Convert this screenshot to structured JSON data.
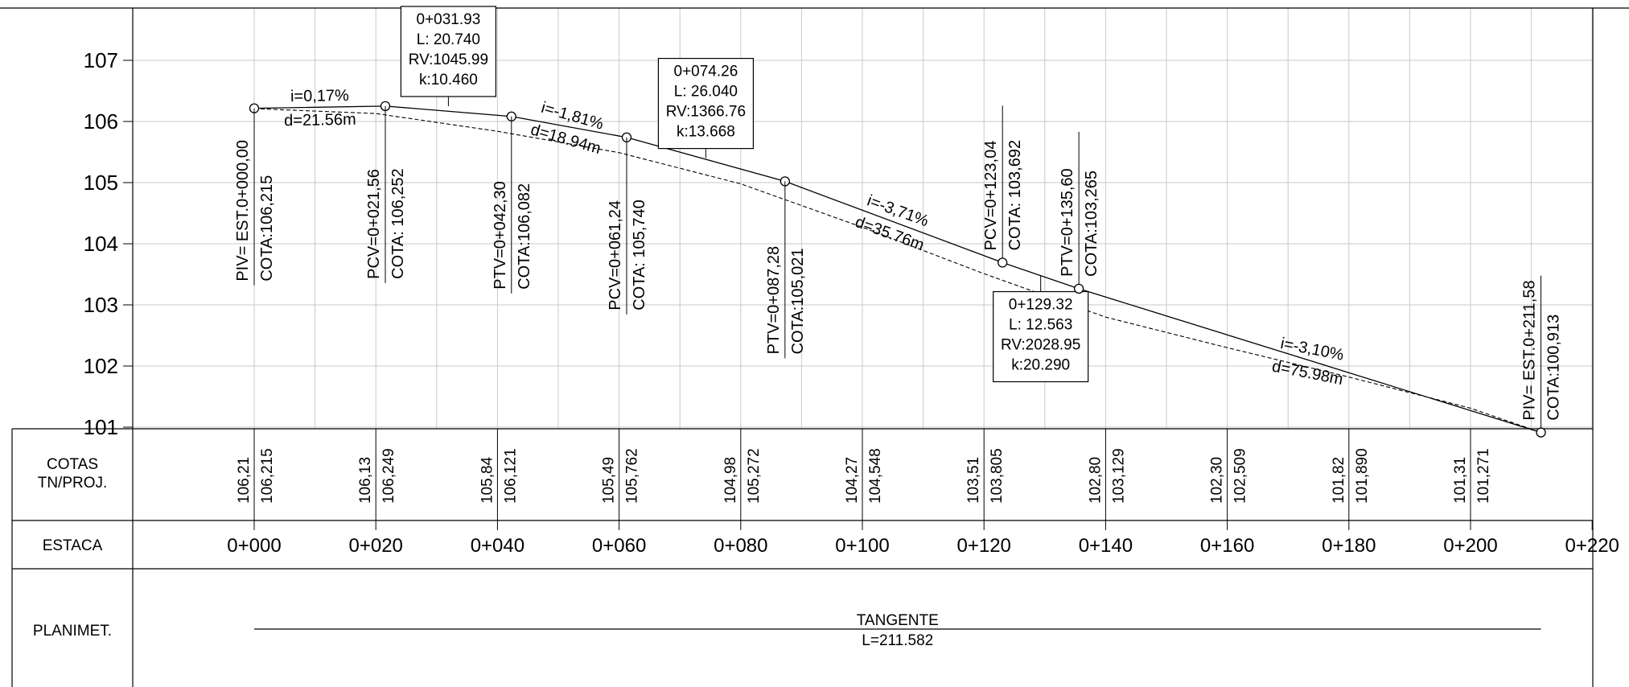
{
  "chart_data": {
    "type": "line",
    "x_unit": "m",
    "y_ticks": [
      107,
      106,
      105,
      104,
      103,
      102,
      101
    ],
    "series": [
      {
        "points": [
          [
            0,
            106.215
          ],
          [
            21.56,
            106.252
          ],
          [
            42.3,
            106.082
          ],
          [
            61.24,
            105.74
          ],
          [
            87.28,
            105.021
          ],
          [
            123.04,
            103.692
          ],
          [
            135.6,
            103.265
          ],
          [
            211.58,
            100.913
          ]
        ]
      },
      {
        "points": [
          [
            0,
            106.21
          ],
          [
            20,
            106.13
          ],
          [
            40,
            105.84
          ],
          [
            60,
            105.49
          ],
          [
            80,
            104.98
          ],
          [
            100,
            104.27
          ],
          [
            120,
            103.51
          ],
          [
            140,
            102.8
          ],
          [
            160,
            102.3
          ],
          [
            180,
            101.82
          ],
          [
            200,
            101.31
          ],
          [
            211.58,
            100.913
          ]
        ]
      }
    ],
    "vertices": [
      {
        "x": 0,
        "y": 106.215,
        "labels": [
          "PIV= EST.0+000,00",
          "COTA:106,215"
        ]
      },
      {
        "x": 21.56,
        "y": 106.252,
        "labels": [
          "PCV=0+021,56",
          "COTA: 106,252"
        ]
      },
      {
        "x": 42.3,
        "y": 106.082,
        "labels": [
          "PTV=0+042,30",
          "COTA:106,082"
        ]
      },
      {
        "x": 61.24,
        "y": 105.74,
        "labels": [
          "PCV=0+061,24",
          "COTA: 105,740"
        ]
      },
      {
        "x": 87.28,
        "y": 105.021,
        "labels": [
          "PTV=0+087,28",
          "COTA:105,021"
        ]
      },
      {
        "x": 123.04,
        "y": 103.692,
        "labels": [
          "PCV=0+123,04",
          "COTA: 103,692"
        ]
      },
      {
        "x": 135.6,
        "y": 103.265,
        "labels": [
          "PTV=0+135,60",
          "COTA:103,265"
        ]
      },
      {
        "x": 211.58,
        "y": 100.913,
        "labels": [
          "PIV= EST.0+211,58",
          "COTA:100,913"
        ]
      }
    ],
    "curves": [
      {
        "x": 31.93,
        "y": 106.25,
        "lines": [
          "0+031.93",
          "L: 20.740",
          "RV:1045.99",
          "k:10.460"
        ]
      },
      {
        "x": 74.26,
        "y": 105.4,
        "lines": [
          "0+074.26",
          "L: 26.040",
          "RV:1366.76",
          "k:13.668"
        ]
      },
      {
        "x": 129.32,
        "y": 103.48,
        "lines": [
          "0+129.32",
          "L: 12.563",
          "RV:2028.95",
          "k:20.290"
        ]
      }
    ],
    "slopes": [
      {
        "x": 10.8,
        "y": 106.23,
        "i": "i=0,17%",
        "d": "d=21.56m"
      },
      {
        "x": 51.8,
        "y": 105.91,
        "i": "i=-1,81%",
        "d": "d=18.94m"
      },
      {
        "x": 105.2,
        "y": 104.36,
        "i": "i=-3,71%",
        "d": "d=35.76m"
      },
      {
        "x": 173.6,
        "y": 102.09,
        "i": "i=-3,10%",
        "d": "d=75.98m"
      }
    ],
    "cotas": [
      {
        "x": 0,
        "tn": "106,21",
        "proj": "106,215"
      },
      {
        "x": 20,
        "tn": "106,13",
        "proj": "106,249"
      },
      {
        "x": 40,
        "tn": "105,84",
        "proj": "106,121"
      },
      {
        "x": 60,
        "tn": "105,49",
        "proj": "105,762"
      },
      {
        "x": 80,
        "tn": "104,98",
        "proj": "105,272"
      },
      {
        "x": 100,
        "tn": "104,27",
        "proj": "104,548"
      },
      {
        "x": 120,
        "tn": "103,51",
        "proj": "103,805"
      },
      {
        "x": 140,
        "tn": "102,80",
        "proj": "103,129"
      },
      {
        "x": 160,
        "tn": "102,30",
        "proj": "102,509"
      },
      {
        "x": 180,
        "tn": "101,82",
        "proj": "101,890"
      },
      {
        "x": 200,
        "tn": "101,31",
        "proj": "101,271"
      }
    ],
    "estacas": [
      {
        "x": 0,
        "label": "0+000"
      },
      {
        "x": 20,
        "label": "0+020"
      },
      {
        "x": 40,
        "label": "0+040"
      },
      {
        "x": 60,
        "label": "0+060"
      },
      {
        "x": 80,
        "label": "0+080"
      },
      {
        "x": 100,
        "label": "0+100"
      },
      {
        "x": 120,
        "label": "0+120"
      },
      {
        "x": 140,
        "label": "0+140"
      },
      {
        "x": 160,
        "label": "0+160"
      },
      {
        "x": 180,
        "label": "0+180"
      },
      {
        "x": 200,
        "label": "0+200"
      },
      {
        "x": 220,
        "label": "0+220"
      }
    ],
    "rows": {
      "cotas": [
        "COTAS",
        "TN/PROJ."
      ],
      "estaca": "ESTACA",
      "planimet": "PLANIMET."
    },
    "planimetria": {
      "start": 0,
      "end": 211.58,
      "label": "TANGENTE",
      "length": "L=211.582"
    }
  }
}
